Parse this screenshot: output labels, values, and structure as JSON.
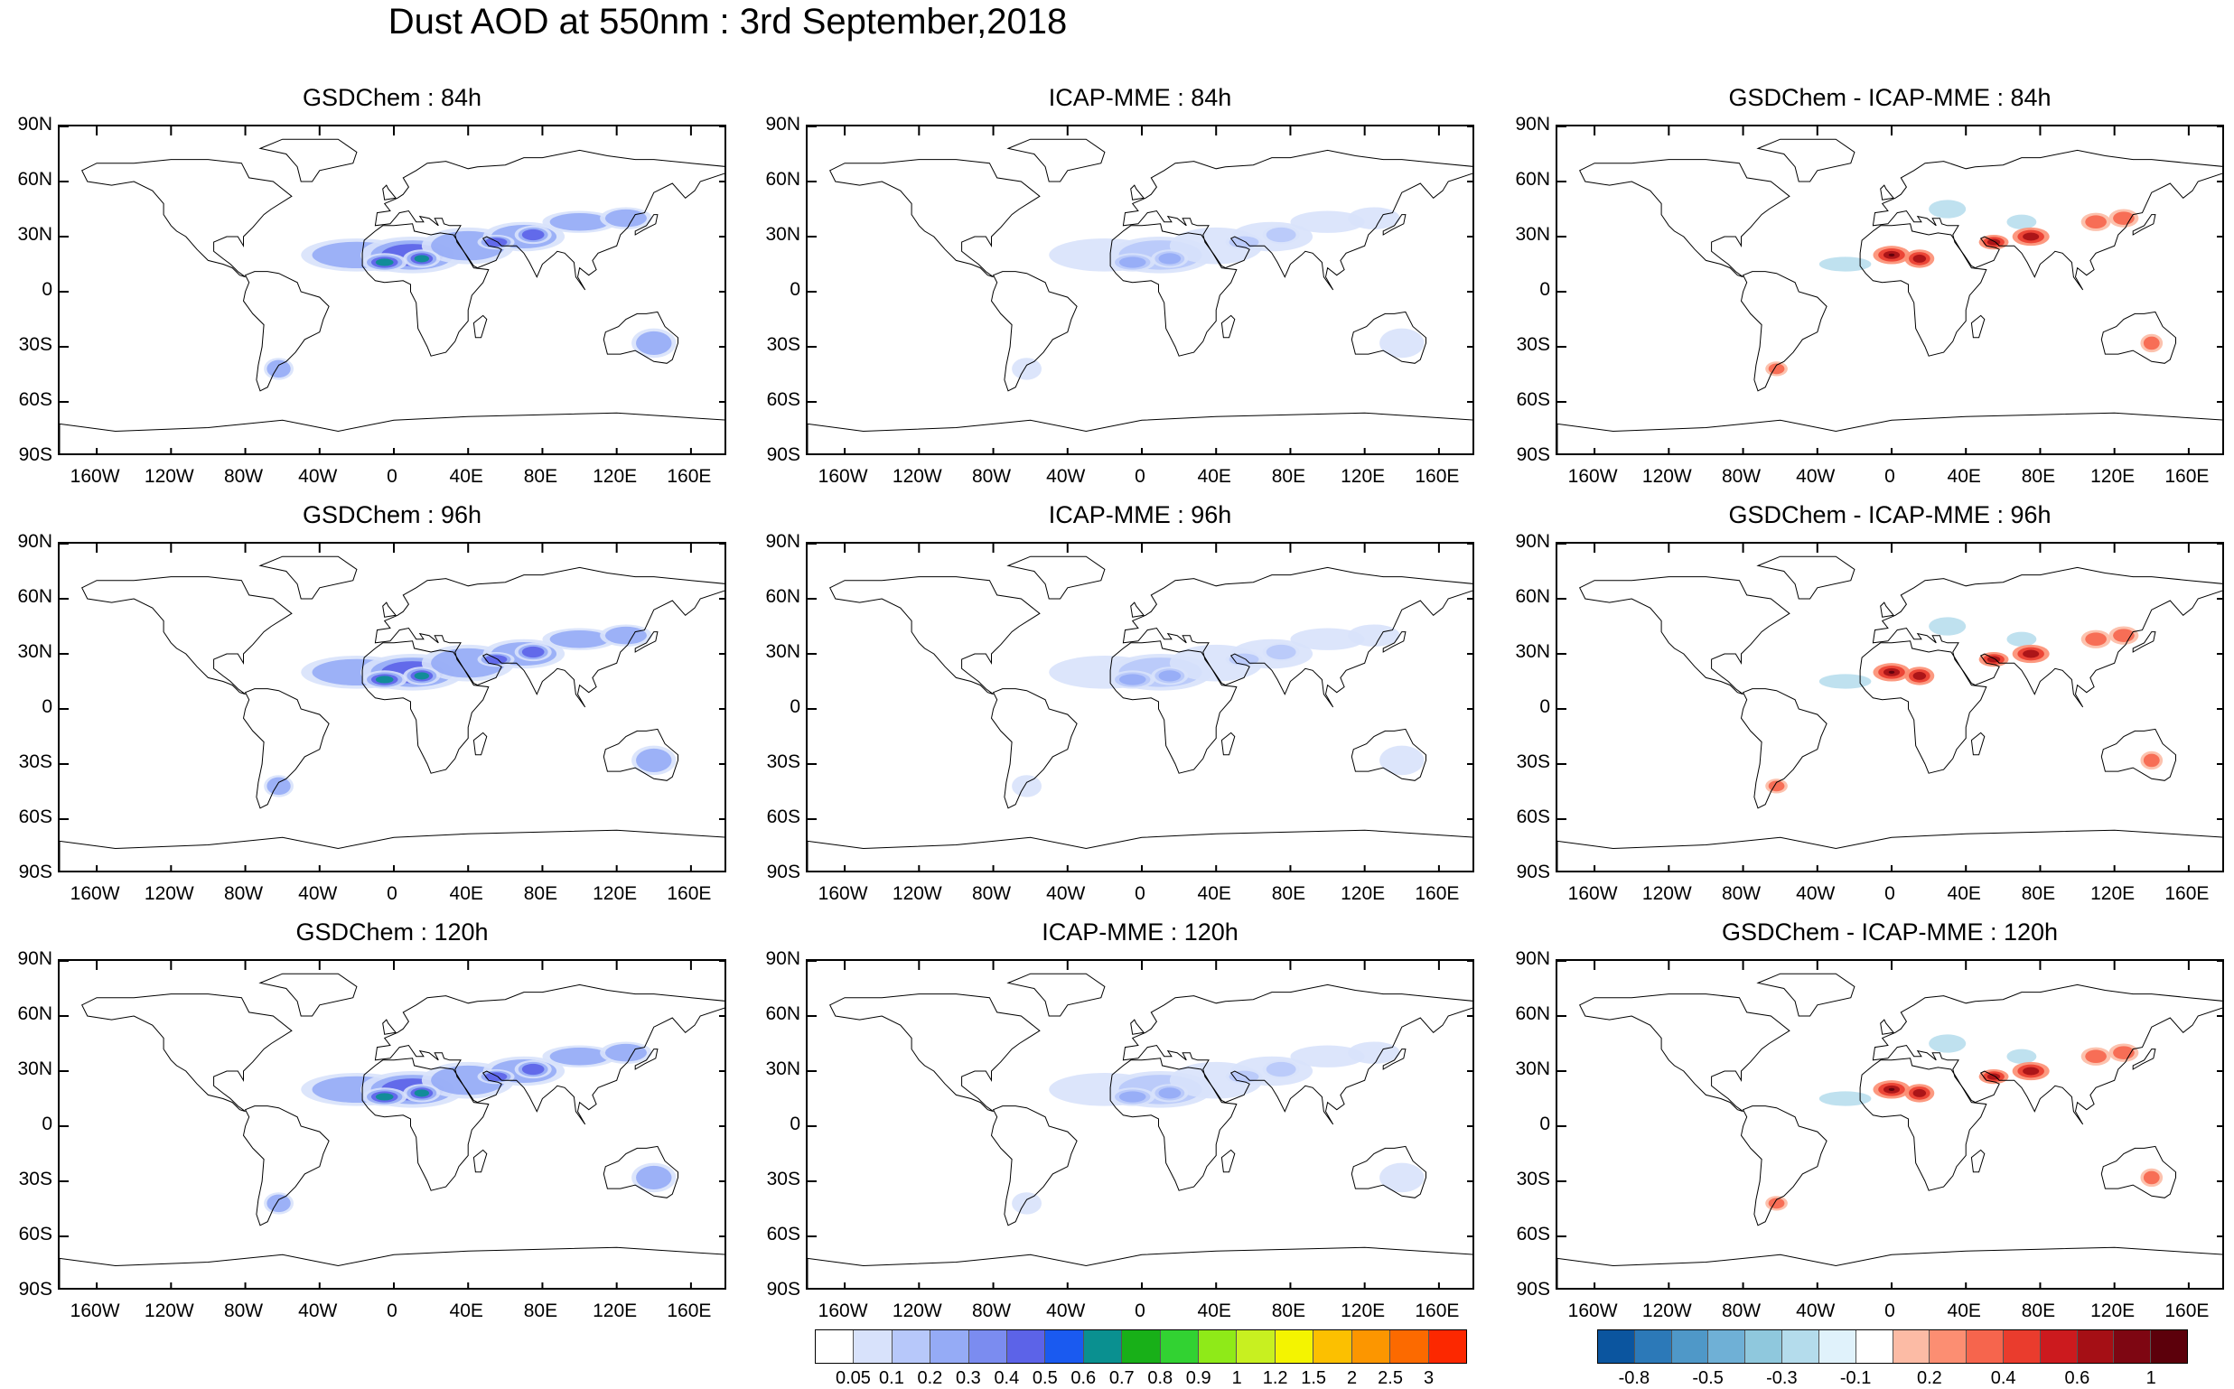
{
  "title": "Dust AOD at 550nm : 3rd September,2018",
  "panels": [
    {
      "row": 0,
      "col": 0,
      "title": "GSDChem : 84h",
      "kind": "aod",
      "level": 3
    },
    {
      "row": 0,
      "col": 1,
      "title": "ICAP-MME : 84h",
      "kind": "aod",
      "level": 2
    },
    {
      "row": 0,
      "col": 2,
      "title": "GSDChem - ICAP-MME : 84h",
      "kind": "diff",
      "level": 3
    },
    {
      "row": 1,
      "col": 0,
      "title": "GSDChem : 96h",
      "kind": "aod",
      "level": 3
    },
    {
      "row": 1,
      "col": 1,
      "title": "ICAP-MME : 96h",
      "kind": "aod",
      "level": 2
    },
    {
      "row": 1,
      "col": 2,
      "title": "GSDChem - ICAP-MME : 96h",
      "kind": "diff",
      "level": 3
    },
    {
      "row": 2,
      "col": 0,
      "title": "GSDChem : 120h",
      "kind": "aod",
      "level": 3
    },
    {
      "row": 2,
      "col": 1,
      "title": "ICAP-MME : 120h",
      "kind": "aod",
      "level": 2
    },
    {
      "row": 2,
      "col": 2,
      "title": "GSDChem - ICAP-MME : 120h",
      "kind": "diff",
      "level": 3
    }
  ],
  "lat_labels": [
    "90N",
    "60N",
    "30N",
    "0",
    "30S",
    "60S",
    "90S"
  ],
  "lon_labels": [
    "160W",
    "120W",
    "80W",
    "40W",
    "0",
    "40E",
    "80E",
    "120E",
    "160E"
  ],
  "aod_colorbar": {
    "colors": [
      "#ffffff",
      "#d8e2fb",
      "#b7c8fa",
      "#95abf6",
      "#7b8cf0",
      "#5c63e8",
      "#1a5af0",
      "#0a9090",
      "#18b018",
      "#32d232",
      "#8fea18",
      "#c8f020",
      "#f4f400",
      "#fcc000",
      "#fc9600",
      "#fc6a00",
      "#fc2800"
    ],
    "labels": [
      "0.05",
      "0.1",
      "0.2",
      "0.3",
      "0.4",
      "0.5",
      "0.6",
      "0.7",
      "0.8",
      "0.9",
      "1",
      "1.2",
      "1.5",
      "2",
      "2.5",
      "3"
    ]
  },
  "diff_colorbar": {
    "colors": [
      "#0b559f",
      "#2c79b8",
      "#4f98c8",
      "#6fb0d6",
      "#8fc8dd",
      "#b4dcec",
      "#e0f2fb",
      "#ffffff",
      "#fcbba5",
      "#fc8e72",
      "#f6654d",
      "#ea3c2d",
      "#cc1a1e",
      "#a50f15",
      "#7e0612",
      "#5c000b"
    ],
    "labels": [
      "-0.8",
      "",
      "-0.5",
      "",
      "-0.3",
      "",
      "-0.1",
      "",
      "0.2",
      "",
      "0.4",
      "",
      "0.6",
      "",
      "1",
      ""
    ]
  }
}
